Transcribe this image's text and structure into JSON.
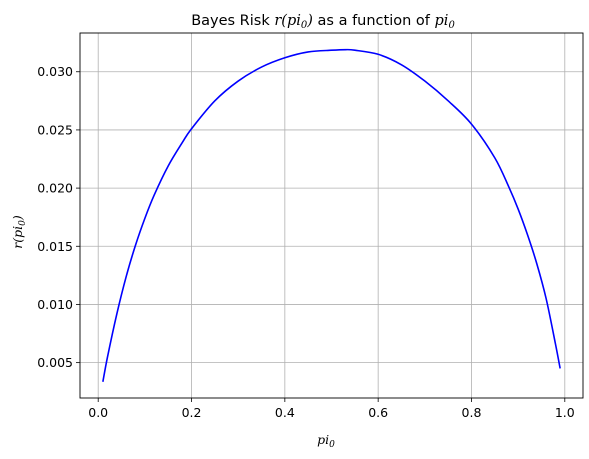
{
  "chart_data": {
    "type": "line",
    "title": {
      "prefix": "Bayes Risk ",
      "math1_base": "r(pi",
      "math1_sub": "0",
      "math1_end": ")",
      "middle": " as a function of ",
      "math2_base": "pi",
      "math2_sub": "0"
    },
    "xlabel": {
      "base": "pi",
      "sub": "0"
    },
    "ylabel": {
      "base": "r(pi",
      "sub": "0",
      "end": ")"
    },
    "xlim": [
      -0.039,
      1.039
    ],
    "ylim": [
      0.00196,
      0.03333
    ],
    "xticks": [
      {
        "value": 0.0,
        "label": "0.0"
      },
      {
        "value": 0.2,
        "label": "0.2"
      },
      {
        "value": 0.4,
        "label": "0.4"
      },
      {
        "value": 0.6,
        "label": "0.6"
      },
      {
        "value": 0.8,
        "label": "0.8"
      },
      {
        "value": 1.0,
        "label": "1.0"
      }
    ],
    "yticks": [
      {
        "value": 0.005,
        "label": "0.005"
      },
      {
        "value": 0.01,
        "label": "0.010"
      },
      {
        "value": 0.015,
        "label": "0.015"
      },
      {
        "value": 0.02,
        "label": "0.020"
      },
      {
        "value": 0.025,
        "label": "0.025"
      },
      {
        "value": 0.03,
        "label": "0.030"
      }
    ],
    "grid": true,
    "series": [
      {
        "color": "#0000ff",
        "x": [
          0.01,
          0.02,
          0.04,
          0.06,
          0.08,
          0.1,
          0.12,
          0.15,
          0.18,
          0.2,
          0.25,
          0.3,
          0.35,
          0.4,
          0.45,
          0.5,
          0.53,
          0.55,
          0.6,
          0.65,
          0.7,
          0.75,
          0.8,
          0.85,
          0.88,
          0.9,
          0.92,
          0.94,
          0.96,
          0.98,
          0.99
        ],
        "y": [
          0.00335,
          0.0055,
          0.0092,
          0.0124,
          0.0151,
          0.0174,
          0.0194,
          0.0219,
          0.0239,
          0.0251,
          0.0275,
          0.0292,
          0.0304,
          0.0312,
          0.0317,
          0.03185,
          0.0319,
          0.03185,
          0.0315,
          0.0306,
          0.0292,
          0.0275,
          0.0255,
          0.0226,
          0.0201,
          0.0182,
          0.016,
          0.0135,
          0.0105,
          0.0066,
          0.0045
        ]
      }
    ]
  }
}
